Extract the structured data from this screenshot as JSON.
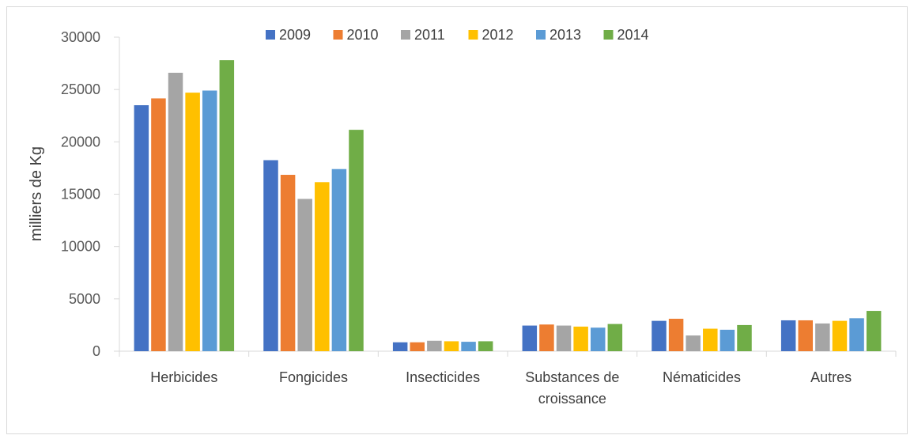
{
  "chart_data": {
    "type": "bar",
    "title": "",
    "xlabel": "",
    "ylabel": "milliers de Kg",
    "ylim": [
      0,
      30000
    ],
    "yticks": [
      0,
      5000,
      10000,
      15000,
      20000,
      25000,
      30000
    ],
    "grid": false,
    "legend_position": "top",
    "categories": [
      [
        "Herbicides"
      ],
      [
        "Fongicides"
      ],
      [
        "Insecticides"
      ],
      [
        "Substances de",
        "croissance"
      ],
      [
        "Nématicides"
      ],
      [
        "Autres"
      ]
    ],
    "series": [
      {
        "name": "2009",
        "color": "#4472c4",
        "values": [
          23500,
          18250,
          850,
          2450,
          2900,
          2950
        ]
      },
      {
        "name": "2010",
        "color": "#ed7d31",
        "values": [
          24150,
          16850,
          850,
          2550,
          3100,
          2950
        ]
      },
      {
        "name": "2011",
        "color": "#a5a5a5",
        "values": [
          26600,
          14550,
          1000,
          2450,
          1500,
          2650
        ]
      },
      {
        "name": "2012",
        "color": "#ffc000",
        "values": [
          24700,
          16150,
          950,
          2350,
          2150,
          2900
        ]
      },
      {
        "name": "2013",
        "color": "#5b9bd5",
        "values": [
          24900,
          17400,
          900,
          2250,
          2050,
          3150
        ]
      },
      {
        "name": "2014",
        "color": "#70ad47",
        "values": [
          27800,
          21150,
          950,
          2600,
          2500,
          3850
        ]
      }
    ]
  }
}
